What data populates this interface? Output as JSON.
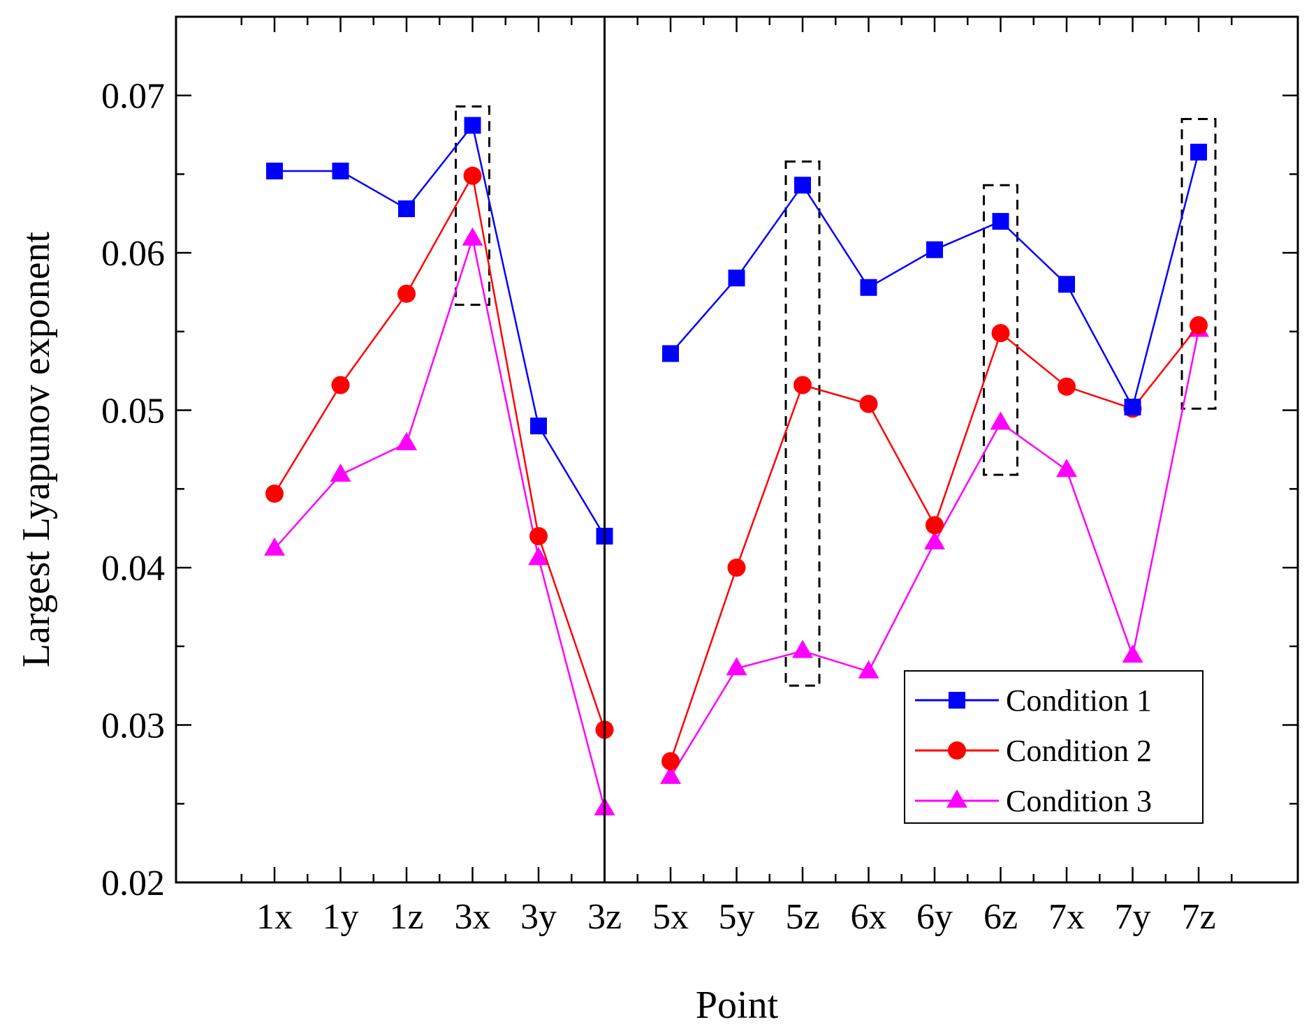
{
  "chart_data": {
    "type": "line",
    "xlabel": "Point",
    "ylabel": "Largest Lyapunov exponent",
    "ylim": [
      0.02,
      0.075
    ],
    "yticks": [
      "0.02",
      "0.03",
      "0.04",
      "0.05",
      "0.06",
      "0.07"
    ],
    "categories": [
      "1x",
      "1y",
      "1z",
      "3x",
      "3y",
      "3z",
      "5x",
      "5y",
      "5z",
      "6x",
      "6y",
      "6z",
      "7x",
      "7y",
      "7z"
    ],
    "series": [
      {
        "name": "Condition 1",
        "color": "#0000ff",
        "marker": "square",
        "segments": [
          {
            "categories": [
              "1x",
              "1y",
              "1z",
              "3x",
              "3y",
              "3z"
            ],
            "values": [
              0.0652,
              0.0652,
              0.0628,
              0.0681,
              0.049,
              0.042
            ]
          },
          {
            "categories": [
              "5x",
              "5y",
              "5z",
              "6x",
              "6y",
              "6z",
              "7x",
              "7y",
              "7z"
            ],
            "values": [
              0.0536,
              0.0584,
              0.0643,
              0.0578,
              0.0602,
              0.062,
              0.058,
              0.0502,
              0.0664
            ]
          }
        ]
      },
      {
        "name": "Condition 2",
        "color": "#ff0000",
        "marker": "circle",
        "segments": [
          {
            "categories": [
              "1x",
              "1y",
              "1z",
              "3x",
              "3y",
              "3z"
            ],
            "values": [
              0.0447,
              0.0516,
              0.0574,
              0.0649,
              0.042,
              0.0297
            ]
          },
          {
            "categories": [
              "5x",
              "5y",
              "5z",
              "6x",
              "6y",
              "6z",
              "7x",
              "7y",
              "7z"
            ],
            "values": [
              0.0277,
              0.04,
              0.0516,
              0.0504,
              0.0427,
              0.0549,
              0.0515,
              0.0501,
              0.0554
            ]
          }
        ]
      },
      {
        "name": "Condition 3",
        "color": "#ff00ff",
        "marker": "triangle",
        "segments": [
          {
            "categories": [
              "1x",
              "1y",
              "1z",
              "3x",
              "3y",
              "3z"
            ],
            "values": [
              0.0412,
              0.0459,
              0.0479,
              0.0609,
              0.0406,
              0.0247
            ]
          },
          {
            "categories": [
              "5x",
              "5y",
              "5z",
              "6x",
              "6y",
              "6z",
              "7x",
              "7y",
              "7z"
            ],
            "values": [
              0.0267,
              0.0336,
              0.0347,
              0.0334,
              0.0416,
              0.0492,
              0.0462,
              0.0344,
              0.0551
            ]
          }
        ]
      }
    ],
    "divider_after": "3z",
    "highlight_boxes": [
      {
        "category": "3x",
        "ymin": 0.0567,
        "ymax": 0.0693
      },
      {
        "category": "5z",
        "ymin": 0.0325,
        "ymax": 0.0658
      },
      {
        "category": "6z",
        "ymin": 0.0459,
        "ymax": 0.0643
      },
      {
        "category": "7z",
        "ymin": 0.0501,
        "ymax": 0.0685
      }
    ],
    "legend_position": "bottom-right"
  }
}
